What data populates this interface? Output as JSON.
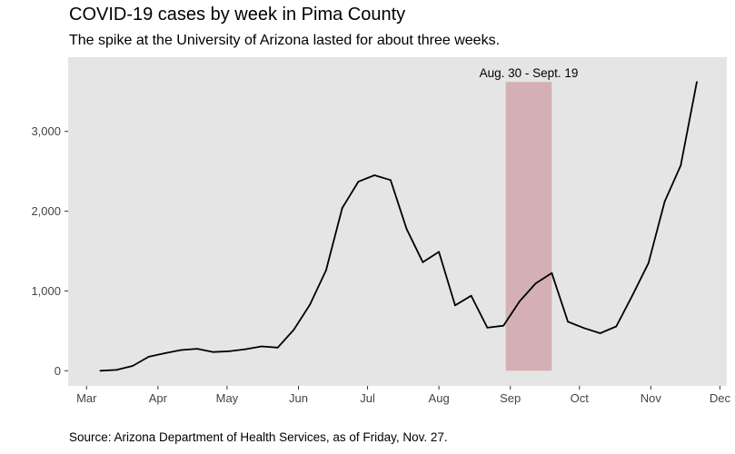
{
  "chart_data": {
    "type": "line",
    "title": "COVID-19 cases by week in Pima County",
    "subtitle": "The spike at the University of Arizona lasted for about three weeks.",
    "source": "Source: Arizona Department of Health Services, as of Friday, Nov. 27.",
    "xlabel": "",
    "ylabel": "",
    "x_tick_labels": [
      "Mar",
      "Apr",
      "May",
      "Jun",
      "Jul",
      "Aug",
      "Sep",
      "Oct",
      "Nov",
      "Dec"
    ],
    "x_ticks": [
      "2020-03-01",
      "2020-04-01",
      "2020-05-01",
      "2020-06-01",
      "2020-07-01",
      "2020-08-01",
      "2020-09-01",
      "2020-10-01",
      "2020-11-01",
      "2020-12-01"
    ],
    "y_tick_labels": [
      "0",
      "1,000",
      "2,000",
      "3,000"
    ],
    "y_ticks": [
      0,
      1000,
      2000,
      3000
    ],
    "xlim": [
      "2020-02-22",
      "2020-12-04"
    ],
    "ylim": [
      -190,
      3930
    ],
    "grid": false,
    "background": "#e5e5e5",
    "line_color": "#000000",
    "highlight": {
      "label": "Aug. 30 - Sept. 19",
      "start": "2020-08-30",
      "end": "2020-09-19",
      "color": "#d4b0b4",
      "ymax": 3620
    },
    "x": [
      "2020-03-07",
      "2020-03-14",
      "2020-03-21",
      "2020-03-28",
      "2020-04-04",
      "2020-04-11",
      "2020-04-18",
      "2020-04-25",
      "2020-05-02",
      "2020-05-09",
      "2020-05-16",
      "2020-05-23",
      "2020-05-30",
      "2020-06-06",
      "2020-06-13",
      "2020-06-20",
      "2020-06-27",
      "2020-07-04",
      "2020-07-11",
      "2020-07-18",
      "2020-07-25",
      "2020-08-01",
      "2020-08-08",
      "2020-08-15",
      "2020-08-22",
      "2020-08-29",
      "2020-09-05",
      "2020-09-12",
      "2020-09-19",
      "2020-09-26",
      "2020-10-03",
      "2020-10-10",
      "2020-10-17",
      "2020-10-24",
      "2020-10-31",
      "2020-11-07",
      "2020-11-14",
      "2020-11-21"
    ],
    "values": [
      0,
      10,
      60,
      175,
      220,
      260,
      275,
      235,
      245,
      270,
      305,
      290,
      515,
      830,
      1260,
      2040,
      2370,
      2450,
      2390,
      1775,
      1360,
      1490,
      820,
      940,
      540,
      565,
      870,
      1095,
      1225,
      615,
      535,
      470,
      555,
      945,
      1350,
      2120,
      2575,
      3620
    ]
  }
}
